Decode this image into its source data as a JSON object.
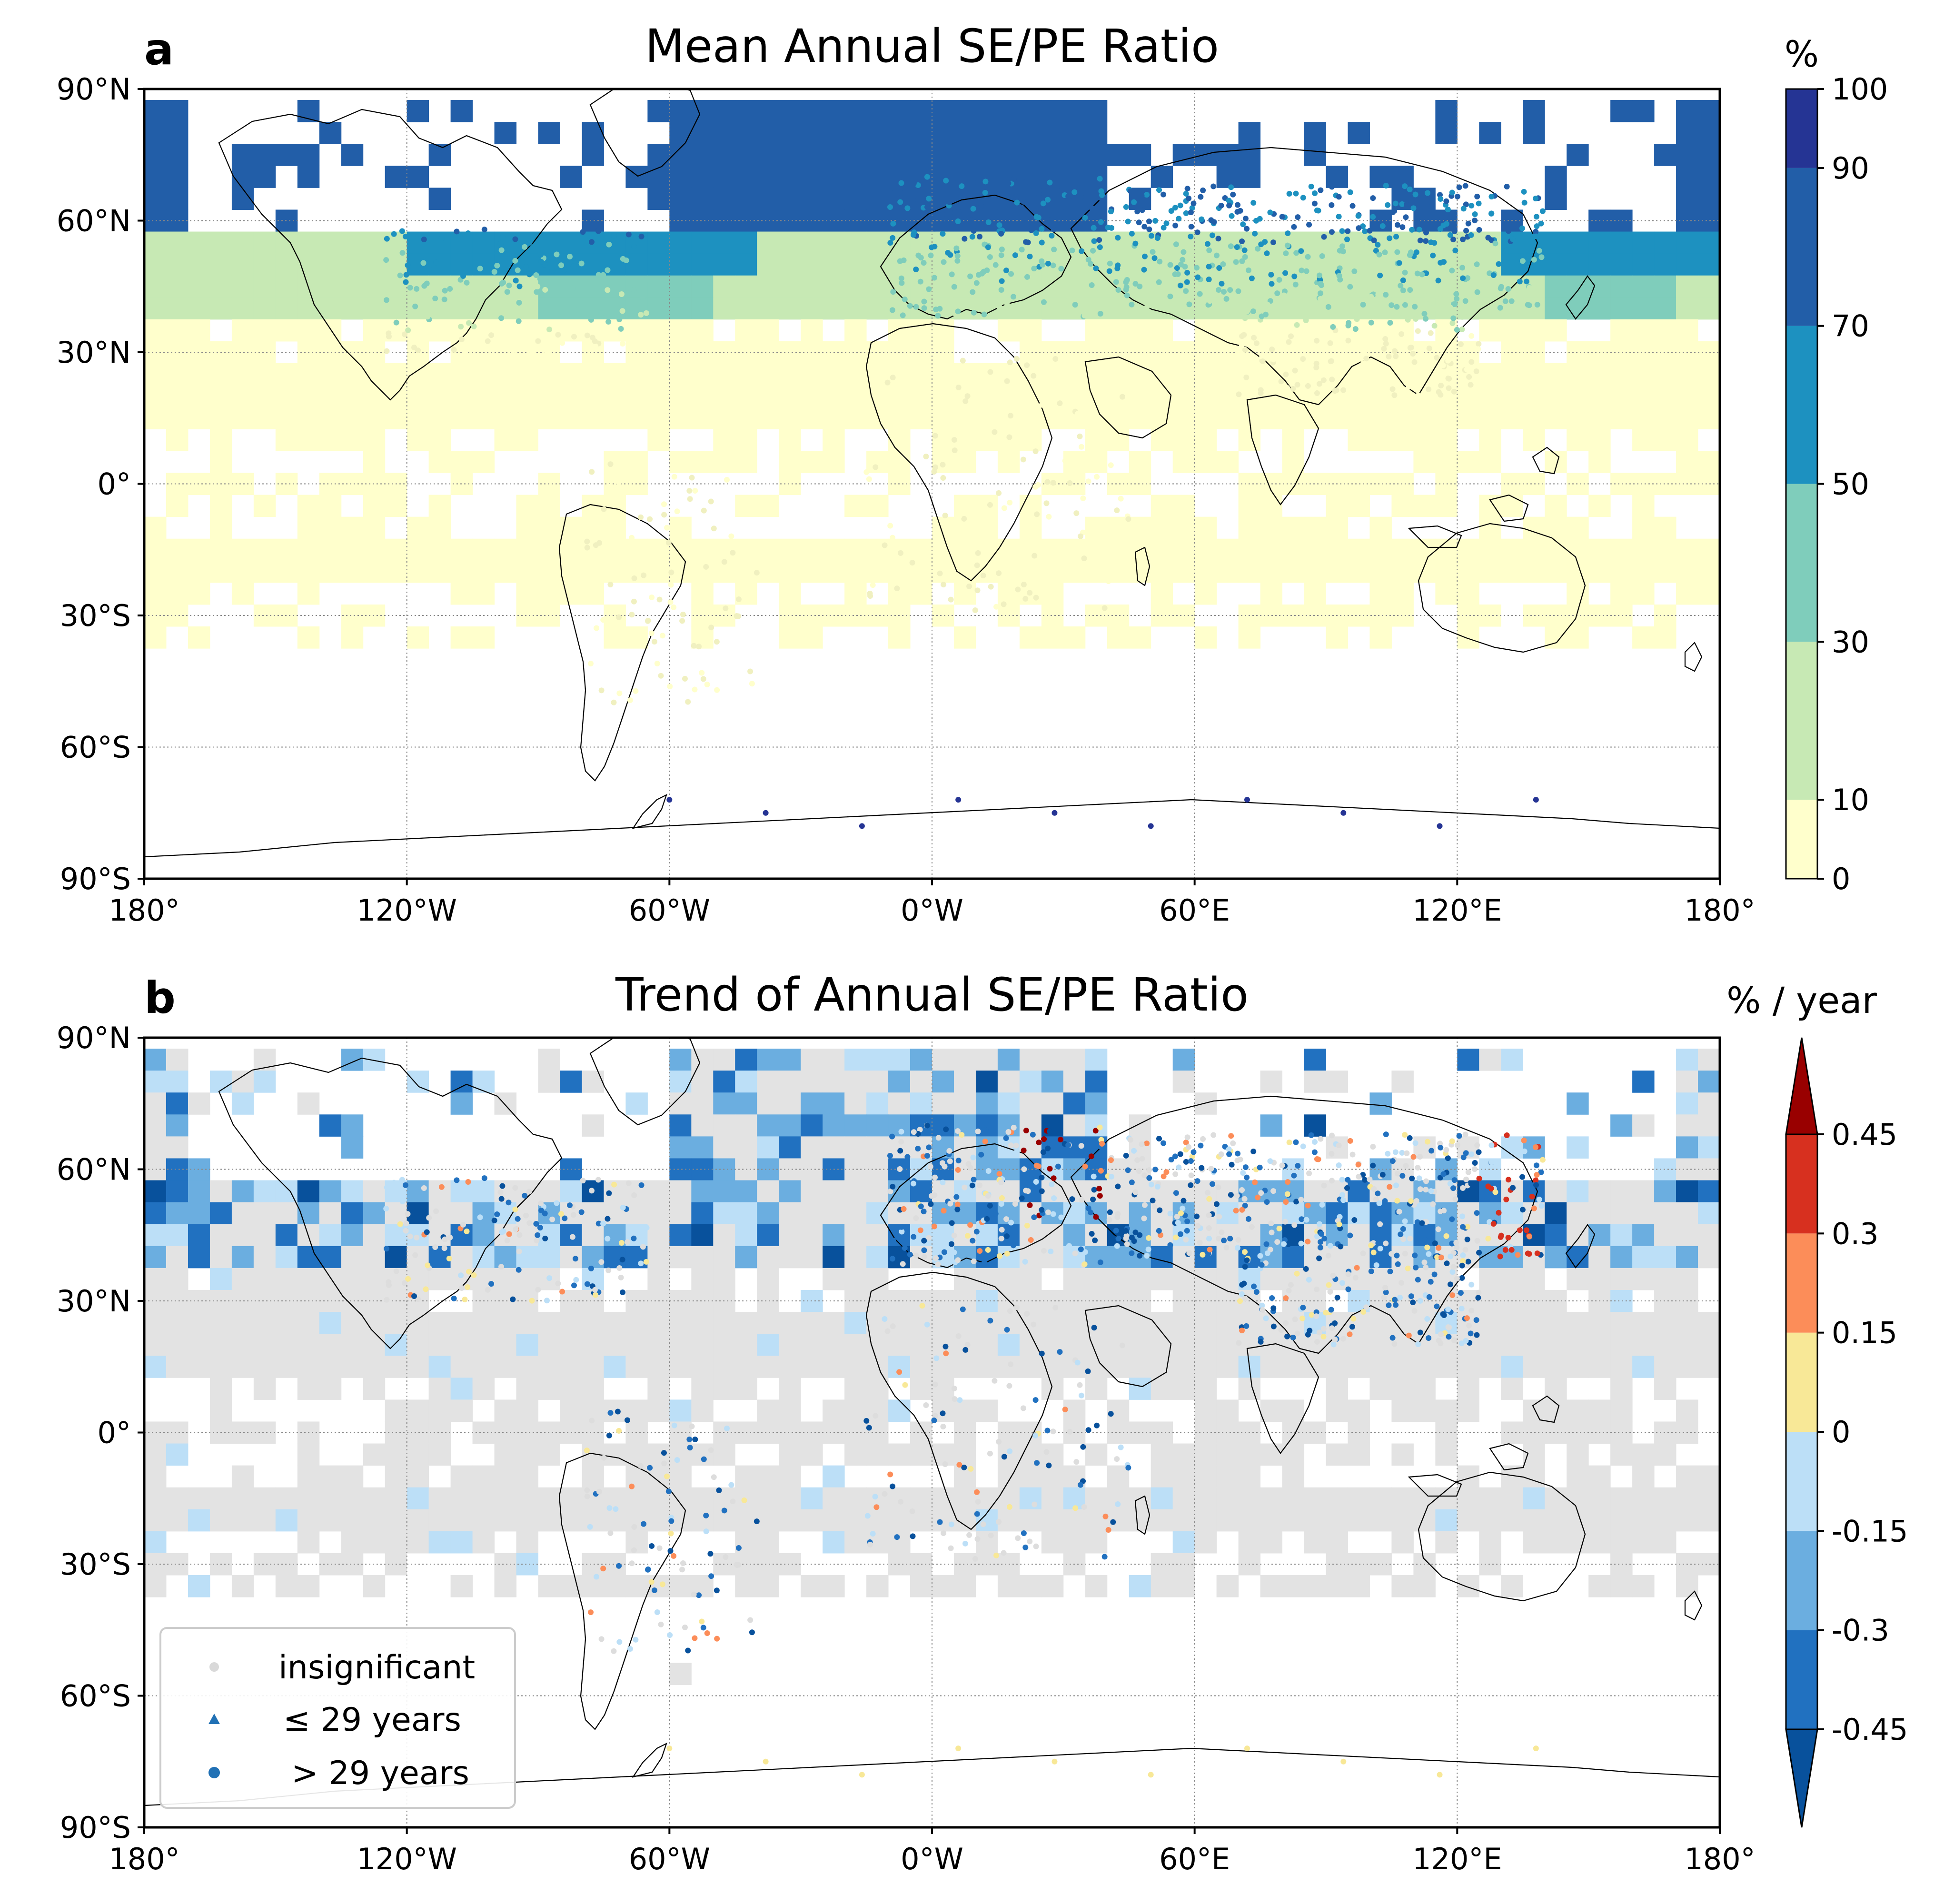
{
  "panels": [
    {
      "letter": "a",
      "title": "Mean Annual SE/PE Ratio",
      "colorbar": {
        "unit": "%",
        "ticks": [
          "0",
          "10",
          "30",
          "50",
          "70",
          "90",
          "100"
        ],
        "colors": [
          "#ffffcc",
          "#c7e9b4",
          "#7fcdbb",
          "#1d91c0",
          "#225ea8",
          "#253494"
        ],
        "extend": "none"
      }
    },
    {
      "letter": "b",
      "title": "Trend of Annual SE/PE Ratio",
      "colorbar": {
        "unit": "% / year",
        "ticks": [
          "-0.45",
          "-0.3",
          "-0.15",
          "0",
          "0.15",
          "0.3",
          "0.45"
        ],
        "colors": [
          "#2171c0",
          "#6baee0",
          "#bcdff7",
          "#f8e897",
          "#fc8d59",
          "#d7301f"
        ],
        "extend": "both",
        "extend_low_color": "#08519c",
        "extend_high_color": "#990000"
      },
      "legend": {
        "items": [
          {
            "marker": "circle",
            "color": "#d9d9d9",
            "label": "insignificant"
          },
          {
            "marker": "triangle",
            "color": "#2171b5",
            "label": "≤ 29 years"
          },
          {
            "marker": "circle",
            "color": "#2171b5",
            "label": "> 29 years"
          }
        ]
      }
    }
  ],
  "axes": {
    "lat_ticks": [
      "90°N",
      "60°N",
      "30°N",
      "0°",
      "30°S",
      "60°S",
      "90°S"
    ],
    "lon_ticks": [
      "180°",
      "120°W",
      "60°W",
      "0°W",
      "60°E",
      "120°E",
      "180°"
    ]
  },
  "colors": {
    "background": "#ffffff",
    "coastline": "#000000",
    "gridline": "#888888",
    "insignificant": "#e3e3e3"
  }
}
